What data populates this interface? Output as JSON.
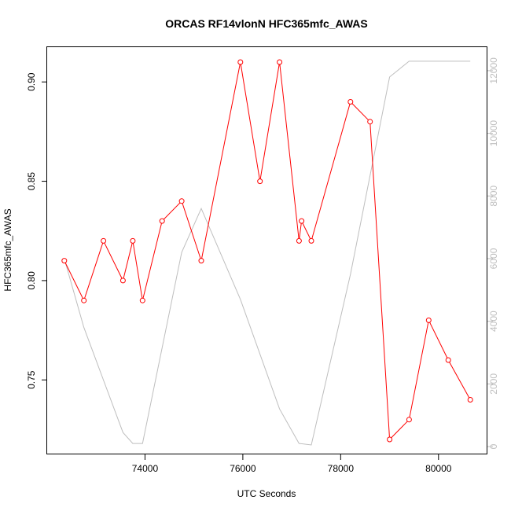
{
  "chart_data": {
    "type": "line",
    "title": "ORCAS RF14vlonN HFC365mfc_AWAS",
    "xlabel": "UTC Seconds",
    "ylabel": "HFC365mfc_AWAS",
    "xlim": [
      72000,
      81000
    ],
    "ylim": [
      0.7125,
      0.9175
    ],
    "y2lim": [
      -250,
      12750
    ],
    "x_ticks": [
      74000,
      76000,
      78000,
      80000
    ],
    "x_tick_labels": [
      "74000",
      "76000",
      "78000",
      "80000"
    ],
    "y_ticks": [
      0.75,
      0.8,
      0.85,
      0.9
    ],
    "y_tick_labels": [
      "0.75",
      "0.80",
      "0.85",
      "0.90"
    ],
    "y2_ticks": [
      0,
      2000,
      4000,
      6000,
      8000,
      10000,
      12000
    ],
    "y2_tick_labels": [
      "0",
      "2000",
      "4000",
      "6000",
      "8000",
      "10000",
      "12000"
    ],
    "series": [
      {
        "color": "#ff0000",
        "axis": "left",
        "markers": true,
        "x": [
          72350,
          72750,
          73150,
          73550,
          73750,
          73950,
          74350,
          74750,
          75150,
          75950,
          76350,
          76750,
          77150,
          77200,
          77400,
          78200,
          78600,
          79000,
          79400,
          79800,
          80200,
          80650
        ],
        "y": [
          0.81,
          0.79,
          0.82,
          0.8,
          0.82,
          0.79,
          0.83,
          0.84,
          0.81,
          0.91,
          0.85,
          0.91,
          0.82,
          0.83,
          0.82,
          0.89,
          0.88,
          0.72,
          0.73,
          0.78,
          0.76,
          0.74
        ]
      },
      {
        "color": "#bebebe",
        "axis": "right",
        "markers": false,
        "x": [
          72350,
          72750,
          73550,
          73750,
          73950,
          74750,
          75150,
          75950,
          76750,
          77150,
          77400,
          78200,
          79000,
          79400,
          80650
        ],
        "y": [
          6000,
          3800,
          450,
          100,
          100,
          6200,
          7600,
          4700,
          1200,
          100,
          50,
          5500,
          11800,
          12300,
          12300
        ]
      }
    ]
  }
}
